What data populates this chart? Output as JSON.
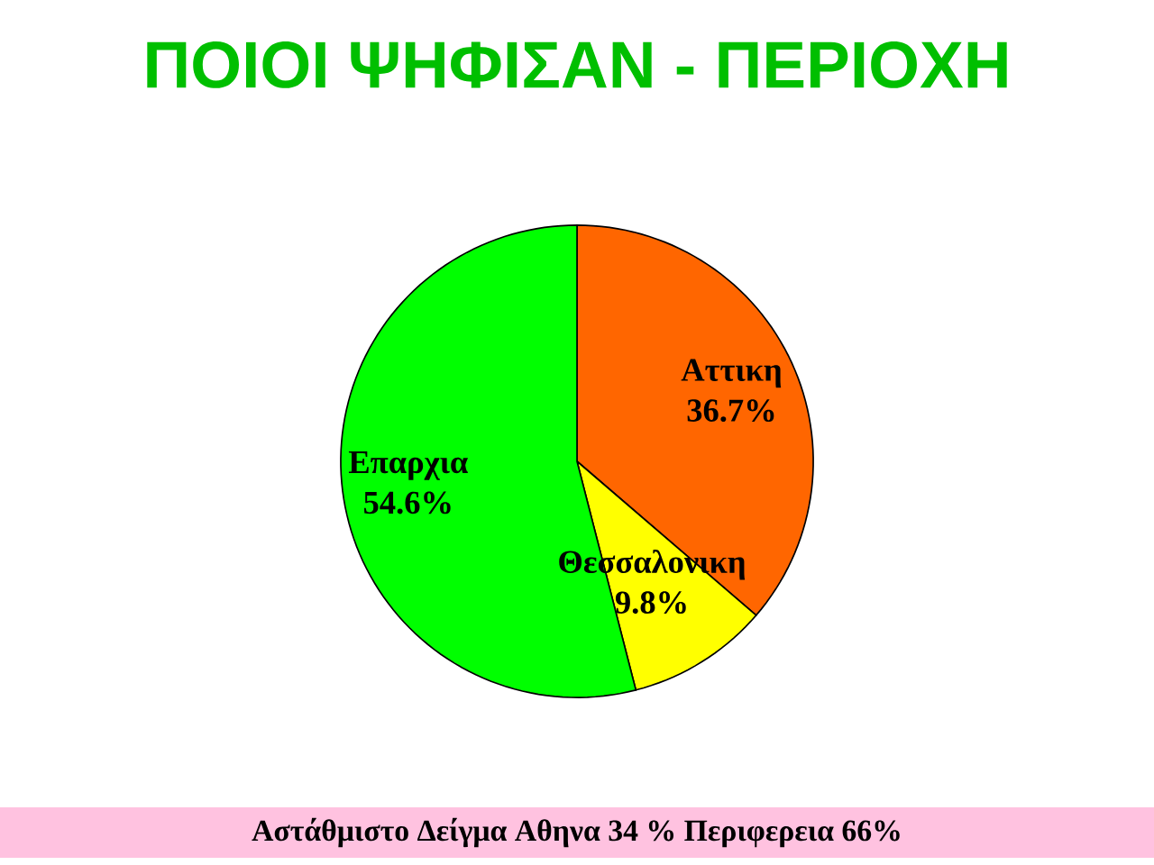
{
  "chart_data": {
    "type": "pie",
    "title": "ΠΟΙΟΙ ΨΗΦΙΣΑΝ - ΠΕΡΙΟΧΗ",
    "categories": [
      "Αττικη",
      "Θεσσαλονικη",
      "Επαρχια"
    ],
    "values": [
      36.7,
      9.8,
      54.6
    ],
    "value_labels": [
      "36.7%",
      "9.8%",
      "54.6%"
    ],
    "colors": [
      "#ff6600",
      "#ffff00",
      "#00ff00"
    ],
    "annotations": [
      "Αστάθμιστο Δείγμα Αθηνα 34 % Περιφερεια 66%"
    ]
  }
}
